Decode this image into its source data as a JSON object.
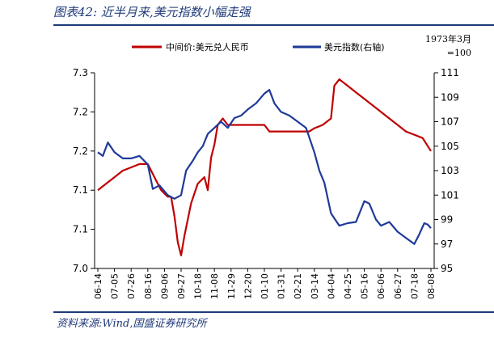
{
  "header": {
    "title": "图表42:  近半月来,美元指数小幅走强"
  },
  "footer": {
    "source": "资料来源:Wind,国盛证券研究所"
  },
  "chart_data": {
    "type": "line",
    "title": "图表42:  近半月来,美元指数小幅走强",
    "right_axis_note_line1": "1973年3月",
    "right_axis_note_line2": "=100",
    "left_axis": {
      "ticks": [
        "7.3",
        "7.2",
        "7.2",
        "7.1",
        "7.1",
        "7.0"
      ],
      "ylim": [
        7.0,
        7.3
      ]
    },
    "right_axis": {
      "ticks": [
        "111",
        "109",
        "107",
        "105",
        "103",
        "101",
        "99",
        "97",
        "95"
      ],
      "ylim": [
        95,
        111
      ]
    },
    "x_ticks": [
      "06-14",
      "07-05",
      "07-26",
      "08-16",
      "09-06",
      "09-27",
      "10-18",
      "11-08",
      "11-29",
      "12-20",
      "01-10",
      "01-31",
      "02-21",
      "03-14",
      "04-04",
      "04-25",
      "05-16",
      "06-06",
      "06-27",
      "07-18",
      "08-08"
    ],
    "series": [
      {
        "name": "中间价:美元兑人民币",
        "axis": "left",
        "color": "#c00000",
        "points": [
          [
            0,
            7.12
          ],
          [
            0.5,
            7.13
          ],
          [
            1,
            7.14
          ],
          [
            1.5,
            7.15
          ],
          [
            2,
            7.155
          ],
          [
            2.5,
            7.16
          ],
          [
            3,
            7.16
          ],
          [
            3.4,
            7.14
          ],
          [
            3.8,
            7.12
          ],
          [
            4.2,
            7.11
          ],
          [
            4.4,
            7.11
          ],
          [
            4.6,
            7.08
          ],
          [
            4.8,
            7.04
          ],
          [
            5.0,
            7.02
          ],
          [
            5.2,
            7.05
          ],
          [
            5.6,
            7.1
          ],
          [
            6.0,
            7.13
          ],
          [
            6.4,
            7.14
          ],
          [
            6.6,
            7.12
          ],
          [
            6.8,
            7.17
          ],
          [
            7.0,
            7.19
          ],
          [
            7.2,
            7.22
          ],
          [
            7.5,
            7.23
          ],
          [
            7.8,
            7.22
          ],
          [
            8.2,
            7.22
          ],
          [
            8.6,
            7.22
          ],
          [
            9.0,
            7.22
          ],
          [
            9.5,
            7.22
          ],
          [
            10.0,
            7.22
          ],
          [
            10.3,
            7.21
          ],
          [
            10.8,
            7.21
          ],
          [
            11.5,
            7.21
          ],
          [
            12.0,
            7.21
          ],
          [
            12.3,
            7.21
          ],
          [
            12.7,
            7.21
          ],
          [
            13.0,
            7.215
          ],
          [
            13.5,
            7.22
          ],
          [
            14.0,
            7.23
          ],
          [
            14.2,
            7.28
          ],
          [
            14.5,
            7.29
          ],
          [
            15.0,
            7.28
          ],
          [
            15.5,
            7.27
          ],
          [
            16.0,
            7.26
          ],
          [
            16.5,
            7.25
          ],
          [
            17.0,
            7.24
          ],
          [
            17.5,
            7.23
          ],
          [
            18.0,
            7.22
          ],
          [
            18.5,
            7.21
          ],
          [
            19.0,
            7.205
          ],
          [
            19.5,
            7.2
          ],
          [
            20.0,
            7.18
          ]
        ]
      },
      {
        "name": "美元指数(右轴)",
        "axis": "right",
        "color": "#1f3a99",
        "points": [
          [
            0,
            104.5
          ],
          [
            0.3,
            104.2
          ],
          [
            0.6,
            105.3
          ],
          [
            1.0,
            104.5
          ],
          [
            1.5,
            104.0
          ],
          [
            2.0,
            104.0
          ],
          [
            2.5,
            104.2
          ],
          [
            3.0,
            103.5
          ],
          [
            3.3,
            101.5
          ],
          [
            3.7,
            101.8
          ],
          [
            4.2,
            101.0
          ],
          [
            4.6,
            100.7
          ],
          [
            5.0,
            101.0
          ],
          [
            5.3,
            103.0
          ],
          [
            5.7,
            103.8
          ],
          [
            6.0,
            104.5
          ],
          [
            6.3,
            105.0
          ],
          [
            6.6,
            106.0
          ],
          [
            7.0,
            106.5
          ],
          [
            7.4,
            107.0
          ],
          [
            7.8,
            106.5
          ],
          [
            8.2,
            107.3
          ],
          [
            8.6,
            107.5
          ],
          [
            9.0,
            108.0
          ],
          [
            9.5,
            108.5
          ],
          [
            10.0,
            109.3
          ],
          [
            10.3,
            109.6
          ],
          [
            10.6,
            108.5
          ],
          [
            11.0,
            107.8
          ],
          [
            11.5,
            107.5
          ],
          [
            12.0,
            107.0
          ],
          [
            12.5,
            106.5
          ],
          [
            13.0,
            104.5
          ],
          [
            13.3,
            103.0
          ],
          [
            13.6,
            102.0
          ],
          [
            14.0,
            99.5
          ],
          [
            14.5,
            98.5
          ],
          [
            15.0,
            98.7
          ],
          [
            15.5,
            98.8
          ],
          [
            16.0,
            100.5
          ],
          [
            16.3,
            100.3
          ],
          [
            16.7,
            99.0
          ],
          [
            17.0,
            98.5
          ],
          [
            17.5,
            98.8
          ],
          [
            18.0,
            98.0
          ],
          [
            18.5,
            97.5
          ],
          [
            19.0,
            97.0
          ],
          [
            19.3,
            97.8
          ],
          [
            19.6,
            98.7
          ],
          [
            19.8,
            98.6
          ],
          [
            20.0,
            98.3
          ]
        ]
      }
    ]
  }
}
